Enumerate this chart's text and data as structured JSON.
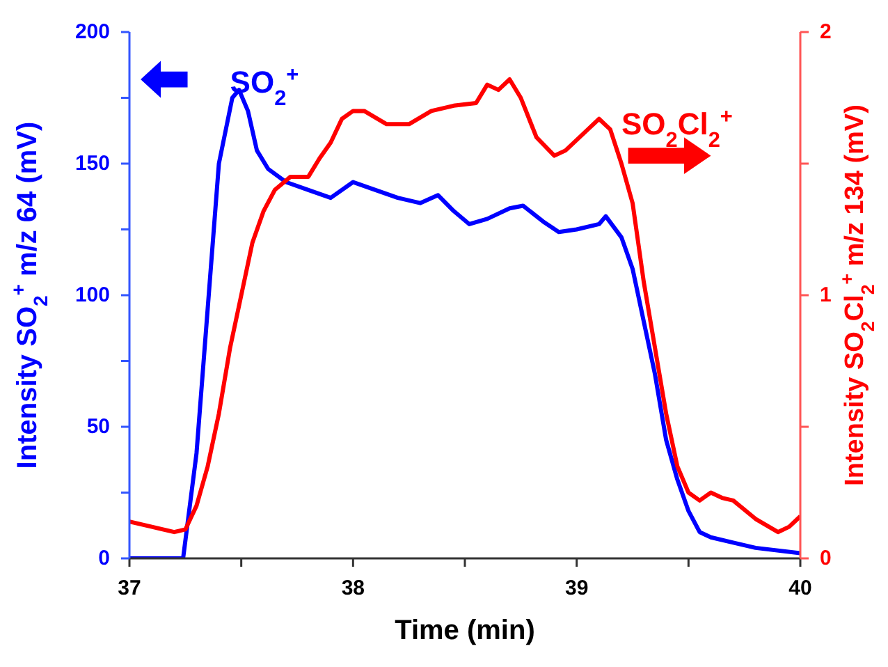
{
  "chart_data": {
    "type": "line",
    "xlabel": "Time (min)",
    "ylabel": "Intensity SO$_{2}$$^{+}$ m/z 64 (mV)",
    "y2label": "Intensity SO$_{2}$Cl$_{2}$$^{+}$ m/z 134 (mV)",
    "annotations": [
      "SO$_{2}$$^{+}$",
      "SO$_{2}$Cl$_{2}$$^{+}$"
    ],
    "xlim": [
      37,
      40
    ],
    "xticks": [
      37,
      {
        "value": 37.5,
        "label": null
      },
      38,
      {
        "value": 38.5,
        "label": null
      },
      39,
      {
        "value": 39.5,
        "label": null
      },
      40
    ],
    "ylim": [
      0,
      200
    ],
    "yticks": [
      0,
      {
        "value": 25,
        "label": null
      },
      50,
      {
        "value": 75,
        "label": null
      },
      100,
      {
        "value": 125,
        "label": null
      },
      150,
      {
        "value": 175,
        "label": null
      },
      200
    ],
    "y2lim": [
      0,
      2
    ],
    "y2ticks": [
      0,
      {
        "value": 0.5,
        "label": null
      },
      1,
      {
        "value": 1.5,
        "label": null
      },
      2
    ],
    "marker": "none",
    "line_style": "solid",
    "series": [
      {
        "color": "#0000ff",
        "x": [
          37,
          37.24,
          37.3,
          37.35,
          37.4,
          37.46,
          37.49,
          37.53,
          37.57,
          37.62,
          37.7,
          37.8,
          37.9,
          38.0,
          38.1,
          38.2,
          38.3,
          38.38,
          38.45,
          38.52,
          38.6,
          38.7,
          38.76,
          38.85,
          38.92,
          39.0,
          39.1,
          39.13,
          39.2,
          39.25,
          39.3,
          39.35,
          39.4,
          39.45,
          39.5,
          39.55,
          39.6,
          39.7,
          39.8,
          40
        ],
        "values": [
          0,
          0,
          40,
          95,
          150,
          175,
          178,
          170,
          155,
          148,
          143,
          140,
          137,
          143,
          140,
          137,
          135,
          138,
          132,
          127,
          129,
          133,
          134,
          128,
          124,
          125,
          127,
          130,
          122,
          110,
          90,
          70,
          45,
          30,
          18,
          10,
          8,
          6,
          4,
          2
        ]
      },
      {
        "color": "#ff0000",
        "axis": "y2",
        "x": [
          37,
          37.1,
          37.2,
          37.25,
          37.3,
          37.35,
          37.4,
          37.45,
          37.5,
          37.55,
          37.6,
          37.65,
          37.72,
          37.8,
          37.85,
          37.9,
          37.95,
          38.0,
          38.05,
          38.15,
          38.25,
          38.35,
          38.45,
          38.55,
          38.6,
          38.65,
          38.7,
          38.75,
          38.82,
          38.9,
          38.95,
          39.05,
          39.1,
          39.15,
          39.2,
          39.25,
          39.3,
          39.35,
          39.4,
          39.45,
          39.5,
          39.55,
          39.6,
          39.65,
          39.7,
          39.8,
          39.9,
          39.95,
          40
        ],
        "values": [
          0.14,
          0.12,
          0.1,
          0.11,
          0.2,
          0.35,
          0.55,
          0.8,
          1.0,
          1.2,
          1.32,
          1.4,
          1.45,
          1.45,
          1.52,
          1.58,
          1.67,
          1.7,
          1.7,
          1.65,
          1.65,
          1.7,
          1.72,
          1.73,
          1.8,
          1.78,
          1.82,
          1.75,
          1.6,
          1.53,
          1.55,
          1.63,
          1.67,
          1.63,
          1.5,
          1.35,
          1.05,
          0.8,
          0.55,
          0.35,
          0.25,
          0.22,
          0.25,
          0.23,
          0.22,
          0.15,
          0.1,
          0.12,
          0.16
        ]
      }
    ]
  }
}
